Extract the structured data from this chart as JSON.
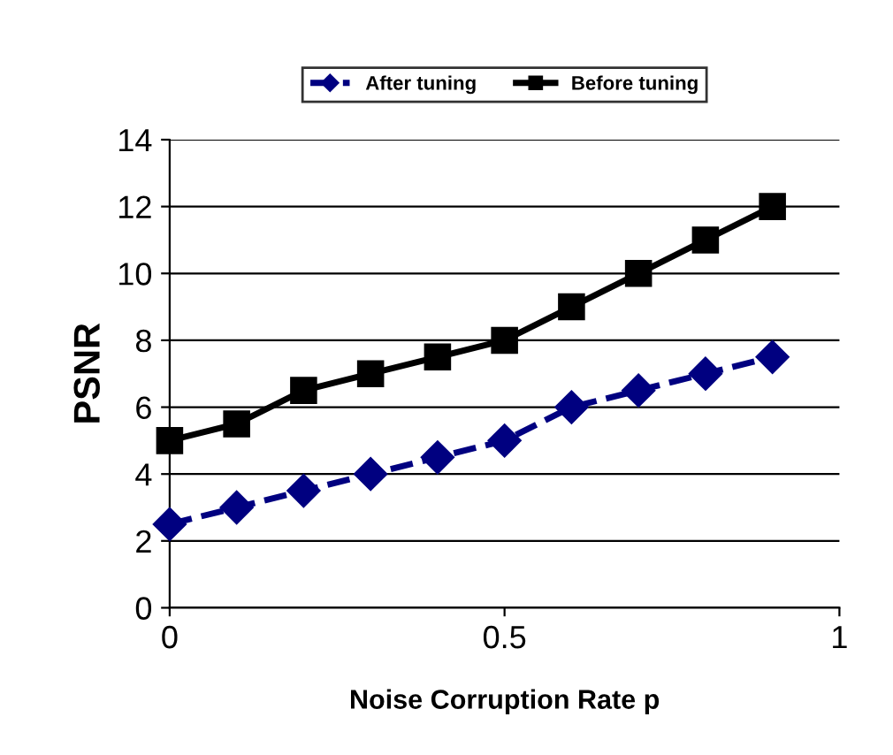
{
  "chart_data": {
    "type": "line",
    "xlabel": "Noise Corruption Rate p",
    "ylabel": "PSNR",
    "x": [
      0,
      0.1,
      0.2,
      0.3,
      0.4,
      0.5,
      0.6,
      0.7,
      0.8,
      0.9
    ],
    "series": [
      {
        "name": "After tuning",
        "color": "#000080",
        "marker": "diamond",
        "line_style": "dashed",
        "values": [
          2.5,
          3,
          3.5,
          4,
          4.5,
          5,
          6,
          6.5,
          7,
          7.5
        ]
      },
      {
        "name": "Before tuning",
        "color": "#000000",
        "marker": "square",
        "line_style": "solid",
        "values": [
          5,
          5.5,
          6.5,
          7,
          7.5,
          8,
          9,
          10,
          11,
          12
        ]
      }
    ],
    "xlim": [
      0,
      1
    ],
    "xticks": [
      0,
      0.5,
      1
    ],
    "ylim": [
      0,
      14
    ],
    "yticks": [
      0,
      2,
      4,
      6,
      8,
      10,
      12,
      14
    ],
    "grid": "y",
    "legend": "top"
  }
}
